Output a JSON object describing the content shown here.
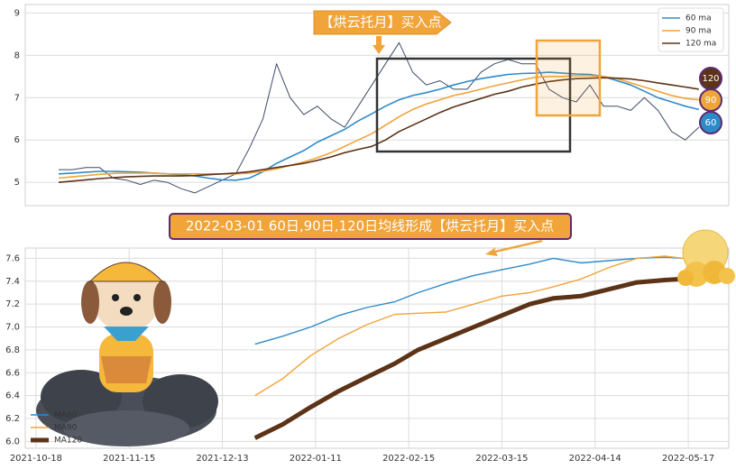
{
  "chart_data": [
    {
      "type": "line",
      "annotation": "【烘云托月】买入点",
      "badges": [
        120,
        90,
        60
      ],
      "ylim": [
        4.45,
        9.2
      ],
      "yticks": [
        5,
        6,
        7,
        8,
        9
      ],
      "xlim": [
        -2.45,
        49.2
      ],
      "grid": true,
      "legend": "upper right",
      "series": [
        {
          "color": "#3d4a66",
          "linewidth": 1,
          "values": [
            5.3,
            5.3,
            5.35,
            5.35,
            5.1,
            5.05,
            4.95,
            5.05,
            5.0,
            4.85,
            4.75,
            4.9,
            5.05,
            5.2,
            5.8,
            6.5,
            7.8,
            7.0,
            6.6,
            6.8,
            6.5,
            6.3,
            6.8,
            7.3,
            7.8,
            8.3,
            7.6,
            7.3,
            7.4,
            7.2,
            7.2,
            7.6,
            7.8,
            7.9,
            7.8,
            7.8,
            7.2,
            7.0,
            6.9,
            7.3,
            6.8,
            6.8,
            6.7,
            7.0,
            6.7,
            6.2,
            6.0,
            6.3
          ]
        },
        {
          "name": "60 ma",
          "color": "#2e8bc9",
          "linewidth": 1.6,
          "values": [
            5.2,
            5.22,
            5.24,
            5.26,
            5.26,
            5.25,
            5.24,
            5.22,
            5.2,
            5.18,
            5.15,
            5.1,
            5.06,
            5.05,
            5.1,
            5.25,
            5.45,
            5.6,
            5.75,
            5.95,
            6.1,
            6.25,
            6.45,
            6.62,
            6.8,
            6.95,
            7.05,
            7.12,
            7.2,
            7.3,
            7.38,
            7.45,
            7.5,
            7.55,
            7.57,
            7.58,
            7.6,
            7.58,
            7.56,
            7.55,
            7.5,
            7.4,
            7.3,
            7.15,
            7.0,
            6.9,
            6.8,
            6.72
          ]
        },
        {
          "name": "90 ma",
          "color": "#f0a43a",
          "linewidth": 1.6,
          "values": [
            5.1,
            5.13,
            5.16,
            5.19,
            5.21,
            5.22,
            5.22,
            5.22,
            5.2,
            5.2,
            5.2,
            5.2,
            5.2,
            5.2,
            5.22,
            5.26,
            5.32,
            5.4,
            5.48,
            5.58,
            5.7,
            5.85,
            6.0,
            6.15,
            6.35,
            6.55,
            6.72,
            6.85,
            6.95,
            7.05,
            7.12,
            7.2,
            7.28,
            7.35,
            7.42,
            7.48,
            7.5,
            7.5,
            7.52,
            7.52,
            7.5,
            7.45,
            7.35,
            7.25,
            7.15,
            7.05,
            6.98,
            6.95
          ]
        },
        {
          "name": "120 ma",
          "color": "#5c3317",
          "linewidth": 1.6,
          "values": [
            5.0,
            5.03,
            5.06,
            5.09,
            5.11,
            5.13,
            5.14,
            5.15,
            5.15,
            5.15,
            5.16,
            5.18,
            5.2,
            5.22,
            5.25,
            5.3,
            5.35,
            5.4,
            5.45,
            5.52,
            5.6,
            5.7,
            5.78,
            5.85,
            6.0,
            6.2,
            6.35,
            6.5,
            6.65,
            6.78,
            6.88,
            6.98,
            7.08,
            7.15,
            7.25,
            7.32,
            7.38,
            7.42,
            7.45,
            7.46,
            7.47,
            7.46,
            7.44,
            7.4,
            7.35,
            7.3,
            7.25,
            7.2
          ]
        }
      ]
    },
    {
      "type": "line",
      "title": "2022-03-01 60日,90日,120日均线形成【烘云托月】买入点",
      "ylim": [
        5.94,
        7.69
      ],
      "yticks": [
        {
          "value": 6,
          "label": "6.0"
        },
        6.2,
        6.4,
        6.6,
        6.8,
        {
          "value": 7,
          "label": "7.0"
        },
        7.2,
        7.4,
        7.6
      ],
      "xlim": [
        -2.3,
        148.7
      ],
      "xticks": [
        {
          "value": 0,
          "label": "2021-10-18"
        },
        {
          "value": 20,
          "label": "2021-11-15"
        },
        {
          "value": 40,
          "label": "2021-12-13"
        },
        {
          "value": 60,
          "label": "2022-01-11"
        },
        {
          "value": 80,
          "label": "2022-02-15"
        },
        {
          "value": 100,
          "label": "2022-03-15"
        },
        {
          "value": 120,
          "label": "2022-04-14"
        },
        {
          "value": 140,
          "label": "2022-05-17"
        }
      ],
      "grid": true,
      "legend": "lower left",
      "x": [
        47,
        53,
        59,
        65,
        71,
        77,
        82,
        88,
        94,
        100,
        106,
        111,
        117,
        123,
        129,
        135,
        139
      ],
      "series": [
        {
          "name": "MA60",
          "color": "#2e8bc9",
          "linewidth": 1.4,
          "values": [
            6.85,
            6.92,
            7.0,
            7.1,
            7.17,
            7.22,
            7.3,
            7.38,
            7.45,
            7.5,
            7.55,
            7.6,
            7.56,
            7.58,
            7.6,
            7.61,
            7.6
          ]
        },
        {
          "name": "MA90",
          "color": "#f0a43a",
          "linewidth": 1.4,
          "values": [
            6.4,
            6.55,
            6.75,
            6.9,
            7.02,
            7.11,
            7.12,
            7.13,
            7.2,
            7.27,
            7.3,
            7.35,
            7.42,
            7.52,
            7.6,
            7.62,
            7.6
          ]
        },
        {
          "name": "MA120",
          "color": "#5c3317",
          "linewidth": 5,
          "values": [
            6.03,
            6.15,
            6.3,
            6.44,
            6.56,
            6.68,
            6.8,
            6.9,
            7.0,
            7.1,
            7.2,
            7.25,
            7.27,
            7.33,
            7.39,
            7.41,
            7.42
          ]
        }
      ]
    }
  ]
}
